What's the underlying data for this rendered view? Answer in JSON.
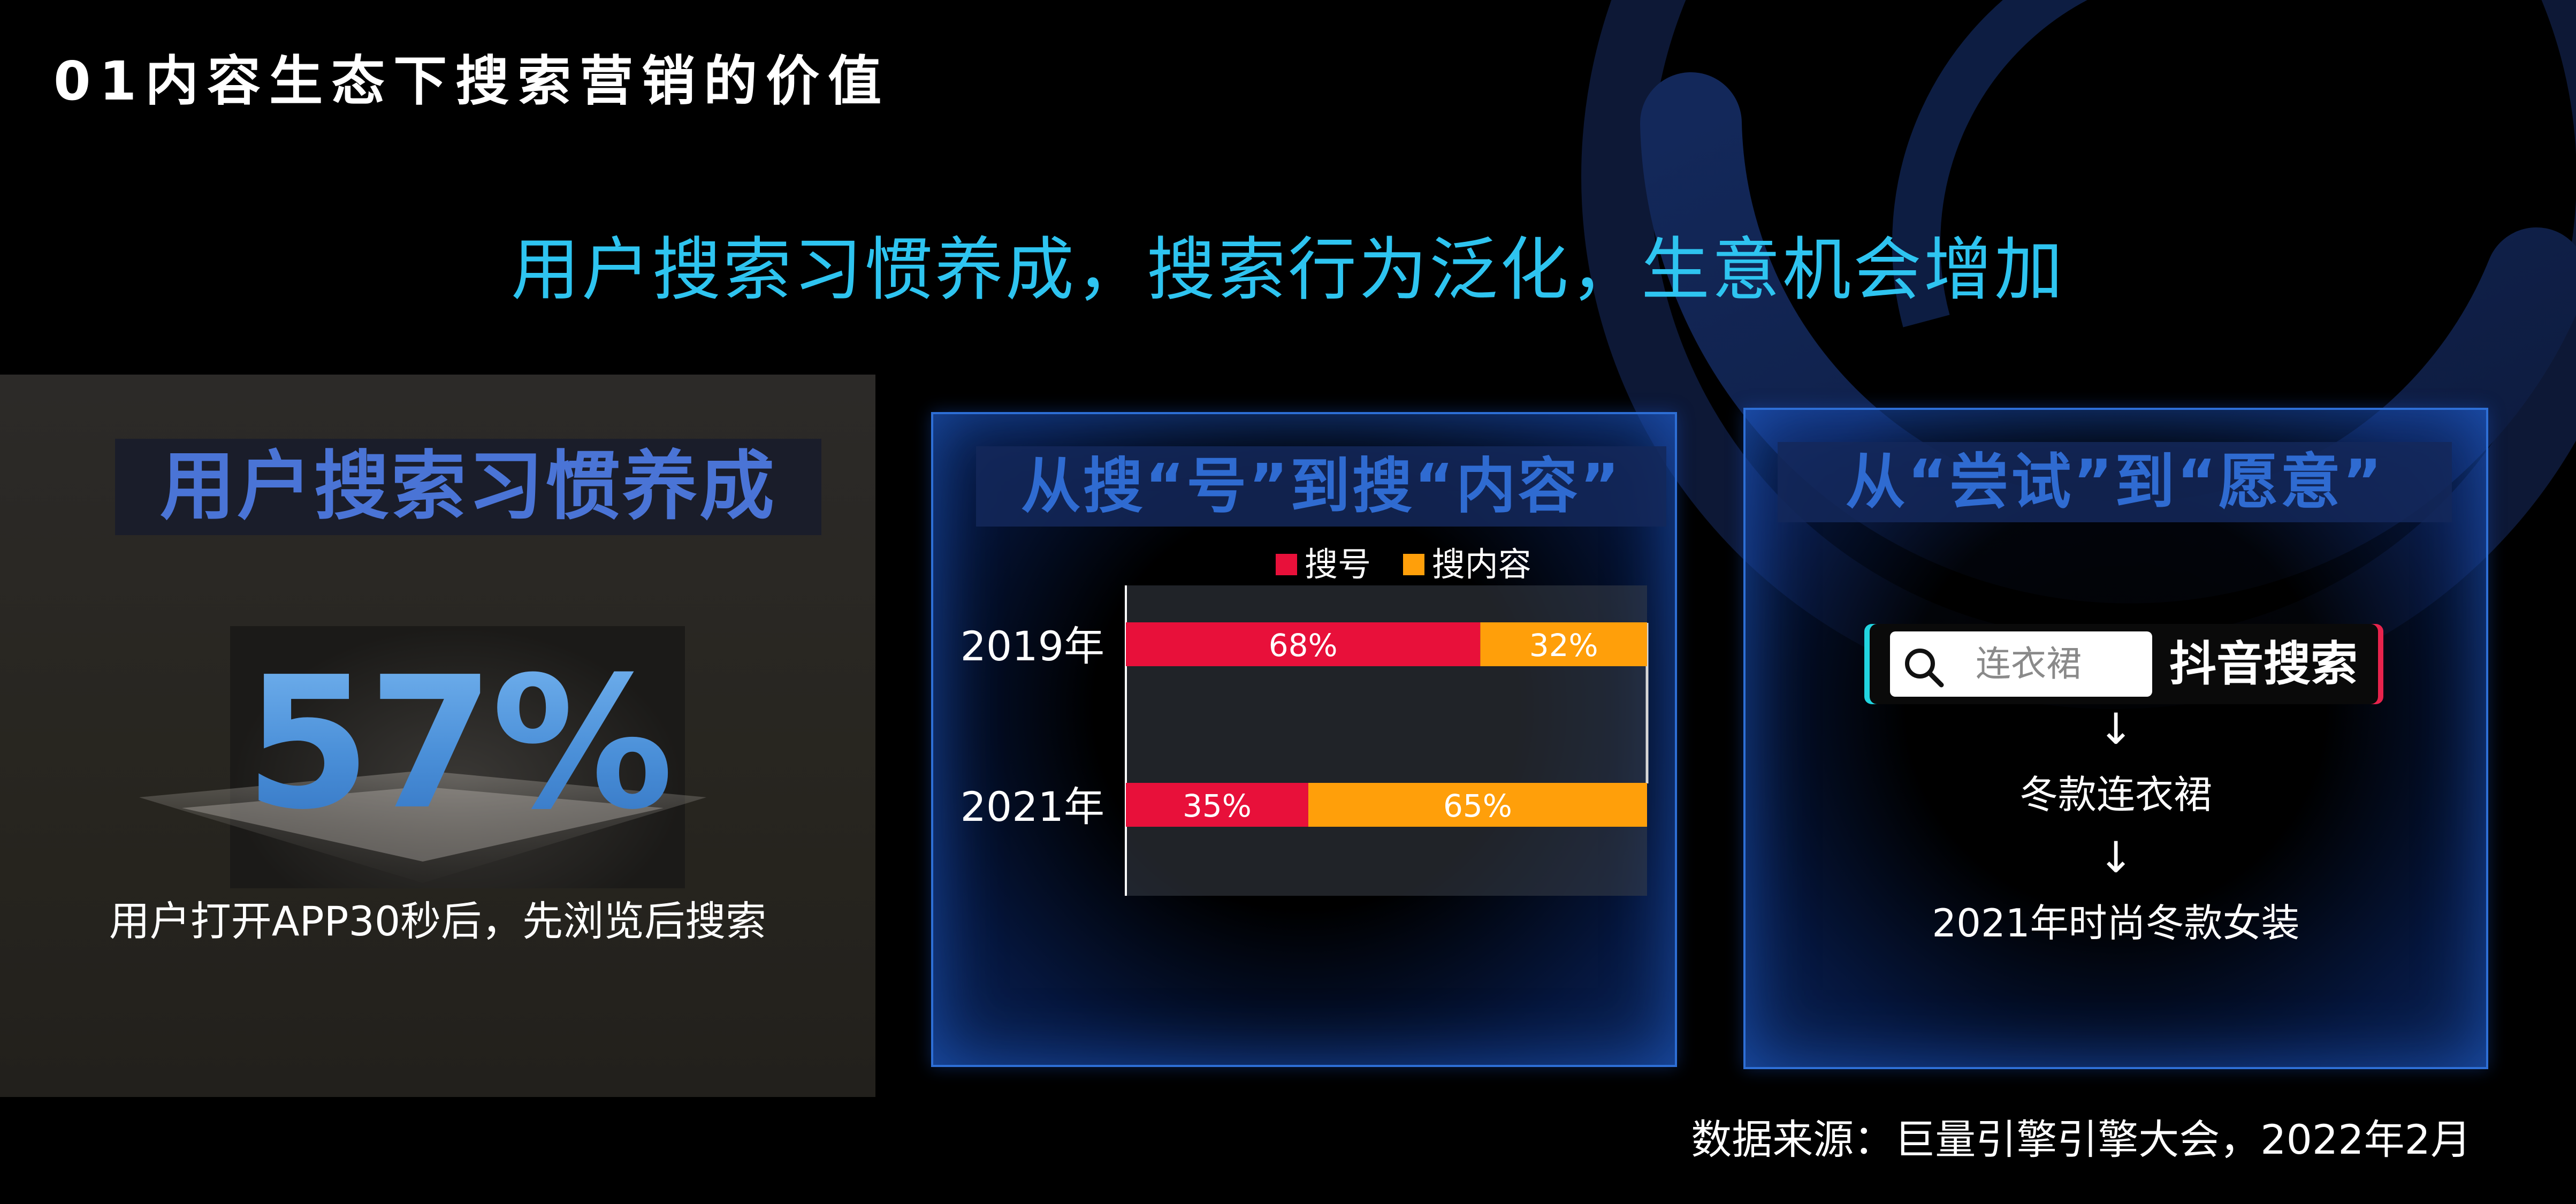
{
  "page": {
    "section_title": "01内容生态下搜索营销的价值",
    "headline": "用户搜索习惯养成，搜索行为泛化，生意机会增加",
    "source_note": "数据来源：巨量引擎引擎大会，2022年2月"
  },
  "habit_panel": {
    "title": "用户搜索习惯养成",
    "stat_value": "57%",
    "stat_caption": "用户打开APP30秒后，先浏览后搜索"
  },
  "shift_panel": {
    "heading": "从搜“号”到搜“内容”"
  },
  "willing_panel": {
    "heading": "从“尝试”到“愿意”",
    "search_query": "连衣裙",
    "search_brand": "抖音搜索",
    "arrow_glyph": "↓",
    "steps": [
      "冬款连衣裙",
      "2021年时尚冬款女装"
    ]
  },
  "colors": {
    "accent_cyan": "#2ec4f0",
    "series_account": "#e8103a",
    "series_content": "#ff9f0a",
    "panel_border": "#2e6fd6"
  },
  "chart_data": {
    "type": "bar",
    "orientation": "horizontal",
    "stacked": true,
    "normalized_percent": true,
    "categories": [
      "2019年",
      "2021年"
    ],
    "series": [
      {
        "name": "搜号",
        "values": [
          68,
          35
        ],
        "labels": [
          "68%",
          "35%"
        ],
        "color": "#e8103a"
      },
      {
        "name": "搜内容",
        "values": [
          32,
          65
        ],
        "labels": [
          "32%",
          "65%"
        ],
        "color": "#ff9f0a"
      }
    ],
    "xlim": [
      0,
      100
    ],
    "legend_position": "top"
  }
}
